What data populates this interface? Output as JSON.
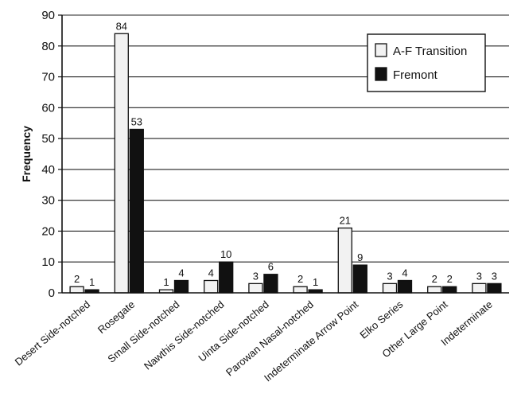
{
  "chart_data": {
    "type": "bar",
    "ylabel": "Frequency",
    "xlabel": "",
    "ylim": [
      0,
      90
    ],
    "yticks": [
      0,
      10,
      20,
      30,
      40,
      50,
      60,
      70,
      80,
      90
    ],
    "grid": true,
    "legend_position": "top-right",
    "categories": [
      "Desert Side-notched",
      "Rosegate",
      "Small Side-notched",
      "Nawthis Side-notched",
      "Uinta Side-notched",
      "Parowan Nasal-notched",
      "Indeterminate Arrow Point",
      "Elko Series",
      "Other Large Point",
      "Indeterminate"
    ],
    "series": [
      {
        "name": "A-F Transition",
        "color": "#f2f2f2",
        "values": [
          2,
          84,
          1,
          4,
          3,
          2,
          21,
          3,
          2,
          3
        ]
      },
      {
        "name": "Fremont",
        "color": "#111111",
        "values": [
          1,
          53,
          4,
          10,
          6,
          1,
          9,
          4,
          2,
          3
        ]
      }
    ]
  }
}
